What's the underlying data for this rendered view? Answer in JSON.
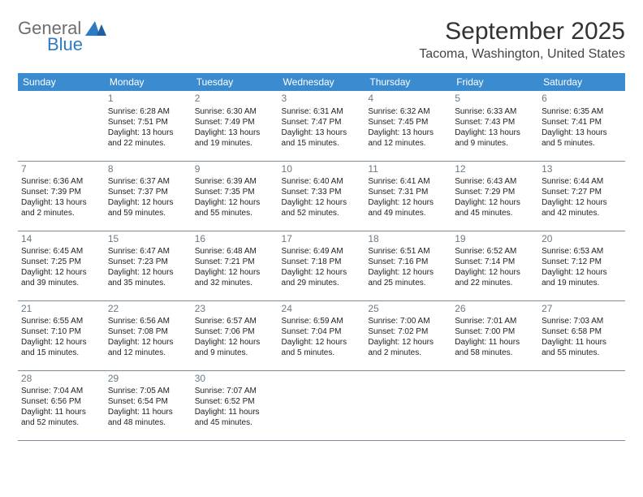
{
  "logo": {
    "line1": "General",
    "line2": "Blue"
  },
  "title": "September 2025",
  "location": "Tacoma, Washington, United States",
  "weekdays": [
    "Sunday",
    "Monday",
    "Tuesday",
    "Wednesday",
    "Thursday",
    "Friday",
    "Saturday"
  ],
  "style": {
    "header_bg": "#3b8bd0",
    "header_text": "#ffffff",
    "rule_color": "#7d8a95",
    "daynum_color": "#6b7a86",
    "body_text": "#222222",
    "bg": "#ffffff",
    "title_fontsize": 30,
    "location_fontsize": 16,
    "header_fontsize": 12,
    "daynum_fontsize": 12,
    "cell_fontsize": 10
  },
  "weeks": [
    [
      null,
      {
        "n": "1",
        "sr": "Sunrise: 6:28 AM",
        "ss": "Sunset: 7:51 PM",
        "d1": "Daylight: 13 hours",
        "d2": "and 22 minutes."
      },
      {
        "n": "2",
        "sr": "Sunrise: 6:30 AM",
        "ss": "Sunset: 7:49 PM",
        "d1": "Daylight: 13 hours",
        "d2": "and 19 minutes."
      },
      {
        "n": "3",
        "sr": "Sunrise: 6:31 AM",
        "ss": "Sunset: 7:47 PM",
        "d1": "Daylight: 13 hours",
        "d2": "and 15 minutes."
      },
      {
        "n": "4",
        "sr": "Sunrise: 6:32 AM",
        "ss": "Sunset: 7:45 PM",
        "d1": "Daylight: 13 hours",
        "d2": "and 12 minutes."
      },
      {
        "n": "5",
        "sr": "Sunrise: 6:33 AM",
        "ss": "Sunset: 7:43 PM",
        "d1": "Daylight: 13 hours",
        "d2": "and 9 minutes."
      },
      {
        "n": "6",
        "sr": "Sunrise: 6:35 AM",
        "ss": "Sunset: 7:41 PM",
        "d1": "Daylight: 13 hours",
        "d2": "and 5 minutes."
      }
    ],
    [
      {
        "n": "7",
        "sr": "Sunrise: 6:36 AM",
        "ss": "Sunset: 7:39 PM",
        "d1": "Daylight: 13 hours",
        "d2": "and 2 minutes."
      },
      {
        "n": "8",
        "sr": "Sunrise: 6:37 AM",
        "ss": "Sunset: 7:37 PM",
        "d1": "Daylight: 12 hours",
        "d2": "and 59 minutes."
      },
      {
        "n": "9",
        "sr": "Sunrise: 6:39 AM",
        "ss": "Sunset: 7:35 PM",
        "d1": "Daylight: 12 hours",
        "d2": "and 55 minutes."
      },
      {
        "n": "10",
        "sr": "Sunrise: 6:40 AM",
        "ss": "Sunset: 7:33 PM",
        "d1": "Daylight: 12 hours",
        "d2": "and 52 minutes."
      },
      {
        "n": "11",
        "sr": "Sunrise: 6:41 AM",
        "ss": "Sunset: 7:31 PM",
        "d1": "Daylight: 12 hours",
        "d2": "and 49 minutes."
      },
      {
        "n": "12",
        "sr": "Sunrise: 6:43 AM",
        "ss": "Sunset: 7:29 PM",
        "d1": "Daylight: 12 hours",
        "d2": "and 45 minutes."
      },
      {
        "n": "13",
        "sr": "Sunrise: 6:44 AM",
        "ss": "Sunset: 7:27 PM",
        "d1": "Daylight: 12 hours",
        "d2": "and 42 minutes."
      }
    ],
    [
      {
        "n": "14",
        "sr": "Sunrise: 6:45 AM",
        "ss": "Sunset: 7:25 PM",
        "d1": "Daylight: 12 hours",
        "d2": "and 39 minutes."
      },
      {
        "n": "15",
        "sr": "Sunrise: 6:47 AM",
        "ss": "Sunset: 7:23 PM",
        "d1": "Daylight: 12 hours",
        "d2": "and 35 minutes."
      },
      {
        "n": "16",
        "sr": "Sunrise: 6:48 AM",
        "ss": "Sunset: 7:21 PM",
        "d1": "Daylight: 12 hours",
        "d2": "and 32 minutes."
      },
      {
        "n": "17",
        "sr": "Sunrise: 6:49 AM",
        "ss": "Sunset: 7:18 PM",
        "d1": "Daylight: 12 hours",
        "d2": "and 29 minutes."
      },
      {
        "n": "18",
        "sr": "Sunrise: 6:51 AM",
        "ss": "Sunset: 7:16 PM",
        "d1": "Daylight: 12 hours",
        "d2": "and 25 minutes."
      },
      {
        "n": "19",
        "sr": "Sunrise: 6:52 AM",
        "ss": "Sunset: 7:14 PM",
        "d1": "Daylight: 12 hours",
        "d2": "and 22 minutes."
      },
      {
        "n": "20",
        "sr": "Sunrise: 6:53 AM",
        "ss": "Sunset: 7:12 PM",
        "d1": "Daylight: 12 hours",
        "d2": "and 19 minutes."
      }
    ],
    [
      {
        "n": "21",
        "sr": "Sunrise: 6:55 AM",
        "ss": "Sunset: 7:10 PM",
        "d1": "Daylight: 12 hours",
        "d2": "and 15 minutes."
      },
      {
        "n": "22",
        "sr": "Sunrise: 6:56 AM",
        "ss": "Sunset: 7:08 PM",
        "d1": "Daylight: 12 hours",
        "d2": "and 12 minutes."
      },
      {
        "n": "23",
        "sr": "Sunrise: 6:57 AM",
        "ss": "Sunset: 7:06 PM",
        "d1": "Daylight: 12 hours",
        "d2": "and 9 minutes."
      },
      {
        "n": "24",
        "sr": "Sunrise: 6:59 AM",
        "ss": "Sunset: 7:04 PM",
        "d1": "Daylight: 12 hours",
        "d2": "and 5 minutes."
      },
      {
        "n": "25",
        "sr": "Sunrise: 7:00 AM",
        "ss": "Sunset: 7:02 PM",
        "d1": "Daylight: 12 hours",
        "d2": "and 2 minutes."
      },
      {
        "n": "26",
        "sr": "Sunrise: 7:01 AM",
        "ss": "Sunset: 7:00 PM",
        "d1": "Daylight: 11 hours",
        "d2": "and 58 minutes."
      },
      {
        "n": "27",
        "sr": "Sunrise: 7:03 AM",
        "ss": "Sunset: 6:58 PM",
        "d1": "Daylight: 11 hours",
        "d2": "and 55 minutes."
      }
    ],
    [
      {
        "n": "28",
        "sr": "Sunrise: 7:04 AM",
        "ss": "Sunset: 6:56 PM",
        "d1": "Daylight: 11 hours",
        "d2": "and 52 minutes."
      },
      {
        "n": "29",
        "sr": "Sunrise: 7:05 AM",
        "ss": "Sunset: 6:54 PM",
        "d1": "Daylight: 11 hours",
        "d2": "and 48 minutes."
      },
      {
        "n": "30",
        "sr": "Sunrise: 7:07 AM",
        "ss": "Sunset: 6:52 PM",
        "d1": "Daylight: 11 hours",
        "d2": "and 45 minutes."
      },
      null,
      null,
      null,
      null
    ]
  ]
}
